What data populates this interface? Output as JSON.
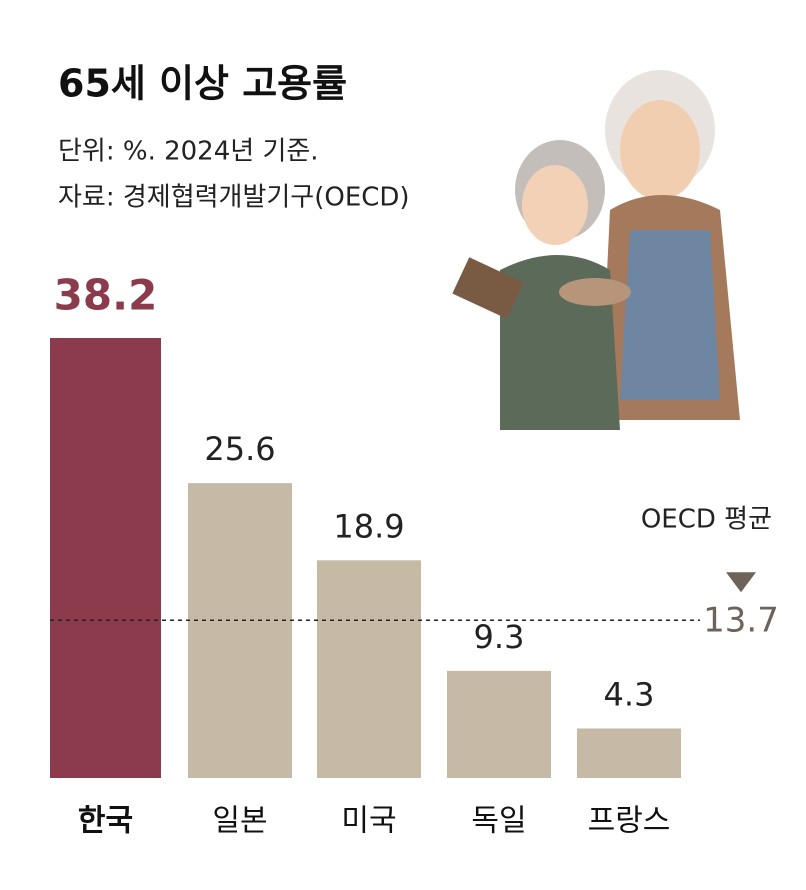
{
  "chart_data": {
    "type": "bar",
    "title": "65세 이상 고용률",
    "subtitle": [
      "단위: %. 2024년 기준.",
      "자료: 경제협력개발기구(OECD)"
    ],
    "categories": [
      "한국",
      "일본",
      "미국",
      "독일",
      "프랑스"
    ],
    "values": [
      38.2,
      25.6,
      18.9,
      9.3,
      4.3
    ],
    "colors": [
      "#8c3b4c",
      "#c6baa7",
      "#c6baa7",
      "#c6baa7",
      "#c6baa7"
    ],
    "reference_line": {
      "label": "OECD 평균",
      "value": 13.7,
      "color": "#6e625a"
    }
  }
}
